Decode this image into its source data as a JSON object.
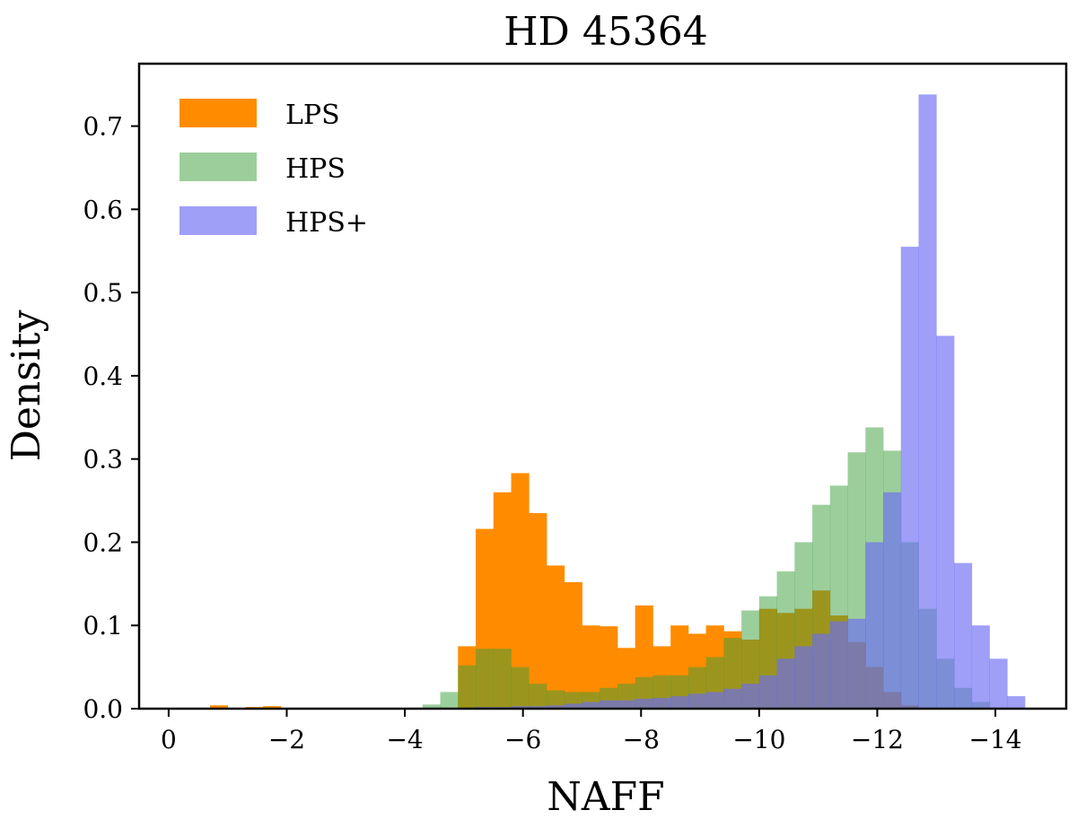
{
  "chart_data": {
    "type": "histogram",
    "title": "HD 45364",
    "xlabel": "NAFF",
    "ylabel": "Density",
    "xlim": [
      0.5,
      -15.2
    ],
    "ylim": [
      0,
      0.775
    ],
    "xticks": [
      0,
      -2,
      -4,
      -6,
      -8,
      -10,
      -12,
      -14
    ],
    "xtick_labels": [
      "0",
      "−2",
      "−4",
      "−6",
      "−8",
      "−10",
      "−12",
      "−14"
    ],
    "yticks": [
      0.0,
      0.1,
      0.2,
      0.3,
      0.4,
      0.5,
      0.6,
      0.7
    ],
    "ytick_labels": [
      "0.0",
      "0.1",
      "0.2",
      "0.3",
      "0.4",
      "0.5",
      "0.6",
      "0.7"
    ],
    "grid": false,
    "legend_position": "top-left",
    "series": [
      {
        "name": "LPS",
        "color": "#ff8c00",
        "opacity": 1.0,
        "bin_edges": [
          -0.7,
          -1.0,
          -1.3,
          -1.6,
          -1.9,
          -2.2,
          -2.5,
          -2.8,
          -3.1,
          -3.4,
          -3.7,
          -4.0,
          -4.3,
          -4.6,
          -4.9,
          -5.2,
          -5.5,
          -5.8,
          -6.1,
          -6.4,
          -6.7,
          -7.0,
          -7.3,
          -7.6,
          -7.9,
          -8.2,
          -8.5,
          -8.8,
          -9.1,
          -9.4,
          -9.7,
          -10.0,
          -10.3,
          -10.6,
          -10.9,
          -11.2,
          -11.5,
          -11.8,
          -12.1,
          -12.4,
          -12.7
        ],
        "values": [
          0.004,
          0.0,
          0.002,
          0.003,
          0.0,
          0.0,
          0.0,
          0.0,
          0.0,
          0.0,
          0.0,
          0.0,
          0.0,
          0.0,
          0.075,
          0.216,
          0.26,
          0.283,
          0.235,
          0.172,
          0.152,
          0.1,
          0.099,
          0.073,
          0.124,
          0.075,
          0.1,
          0.09,
          0.1,
          0.093,
          0.083,
          0.12,
          0.115,
          0.12,
          0.142,
          0.112,
          0.08,
          0.05,
          0.02,
          0.004
        ]
      },
      {
        "name": "HPS",
        "color": "#3a9e3a",
        "opacity": 0.5,
        "bin_edges": [
          -4.3,
          -4.6,
          -4.9,
          -5.2,
          -5.5,
          -5.8,
          -6.1,
          -6.4,
          -6.7,
          -7.0,
          -7.3,
          -7.6,
          -7.9,
          -8.2,
          -8.5,
          -8.8,
          -9.1,
          -9.4,
          -9.7,
          -10.0,
          -10.3,
          -10.6,
          -10.9,
          -11.2,
          -11.5,
          -11.8,
          -12.1,
          -12.4,
          -12.7,
          -13.0,
          -13.3,
          -13.6,
          -13.9
        ],
        "values": [
          0.005,
          0.02,
          0.052,
          0.072,
          0.072,
          0.05,
          0.03,
          0.022,
          0.02,
          0.02,
          0.025,
          0.03,
          0.038,
          0.04,
          0.04,
          0.05,
          0.062,
          0.085,
          0.118,
          0.135,
          0.165,
          0.2,
          0.245,
          0.268,
          0.308,
          0.338,
          0.31,
          0.2,
          0.12,
          0.06,
          0.025,
          0.008
        ]
      },
      {
        "name": "HPS+",
        "color": "#6b6bf5",
        "opacity": 0.65,
        "bin_edges": [
          -5.2,
          -5.5,
          -5.8,
          -6.1,
          -6.4,
          -6.7,
          -7.0,
          -7.3,
          -7.6,
          -7.9,
          -8.2,
          -8.5,
          -8.8,
          -9.1,
          -9.4,
          -9.7,
          -10.0,
          -10.3,
          -10.6,
          -10.9,
          -11.2,
          -11.5,
          -11.8,
          -12.1,
          -12.4,
          -12.7,
          -13.0,
          -13.3,
          -13.6,
          -13.9,
          -14.2,
          -14.5
        ],
        "values": [
          0.002,
          0.002,
          0.003,
          0.003,
          0.004,
          0.006,
          0.008,
          0.01,
          0.01,
          0.012,
          0.013,
          0.015,
          0.018,
          0.02,
          0.024,
          0.03,
          0.04,
          0.06,
          0.075,
          0.09,
          0.105,
          0.108,
          0.2,
          0.26,
          0.555,
          0.738,
          0.448,
          0.175,
          0.1,
          0.06,
          0.015
        ]
      }
    ]
  }
}
